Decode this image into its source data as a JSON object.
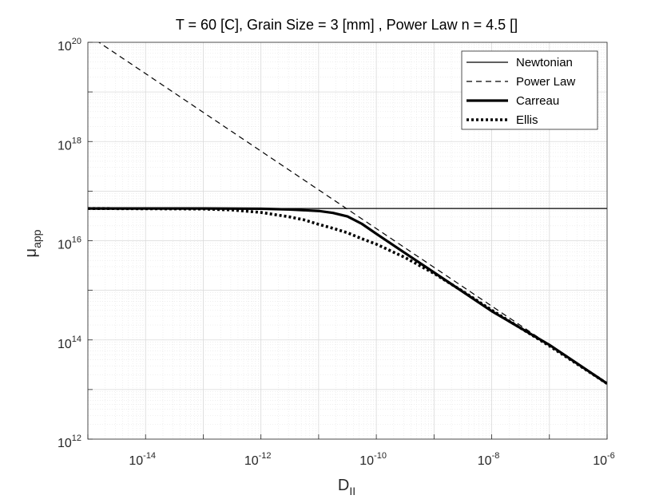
{
  "chart_data": {
    "type": "line",
    "title": "T = 60 [C], Grain Size = 3 [mm] , Power Law n = 4.5 []",
    "xlabel": {
      "base": "D",
      "sub": "II"
    },
    "ylabel": {
      "base": "μ",
      "sub": "app"
    },
    "xscale": "log",
    "yscale": "log",
    "xlim_exp": [
      -15,
      -6
    ],
    "ylim_exp": [
      12,
      20
    ],
    "xticks_exp": [
      -14,
      -12,
      -10,
      -8,
      -6
    ],
    "yticks_exp": [
      12,
      14,
      16,
      18,
      20
    ],
    "tick_base": "10",
    "grid": true,
    "minor_grid": true,
    "legend_position": "top-right",
    "series": [
      {
        "name": "Newtonian",
        "style": "solid-thin",
        "log_x": [
          -15,
          -6
        ],
        "log_y": [
          16.65,
          16.65
        ]
      },
      {
        "name": "Power Law",
        "style": "dashed",
        "log_x": [
          -15,
          -6
        ],
        "log_y": [
          20.15,
          13.12
        ]
      },
      {
        "name": "Carreau",
        "style": "solid-thick",
        "log_x": [
          -15,
          -13,
          -12,
          -11.5,
          -11,
          -10.75,
          -10.5,
          -10.25,
          -10,
          -9.5,
          -9,
          -8,
          -7,
          -6
        ],
        "log_y": [
          16.65,
          16.65,
          16.645,
          16.63,
          16.6,
          16.56,
          16.49,
          16.34,
          16.14,
          15.75,
          15.36,
          14.58,
          13.9,
          13.12
        ]
      },
      {
        "name": "Ellis",
        "style": "dotted",
        "log_x": [
          -15,
          -13,
          -12.5,
          -12,
          -11.5,
          -11.25,
          -11,
          -10.75,
          -10.5,
          -10.25,
          -10,
          -9.5,
          -9,
          -8.5,
          -8,
          -7,
          -6
        ],
        "log_y": [
          16.65,
          16.64,
          16.62,
          16.57,
          16.48,
          16.42,
          16.33,
          16.25,
          16.16,
          16.04,
          15.93,
          15.66,
          15.34,
          14.98,
          14.6,
          13.88,
          13.12
        ]
      }
    ]
  }
}
